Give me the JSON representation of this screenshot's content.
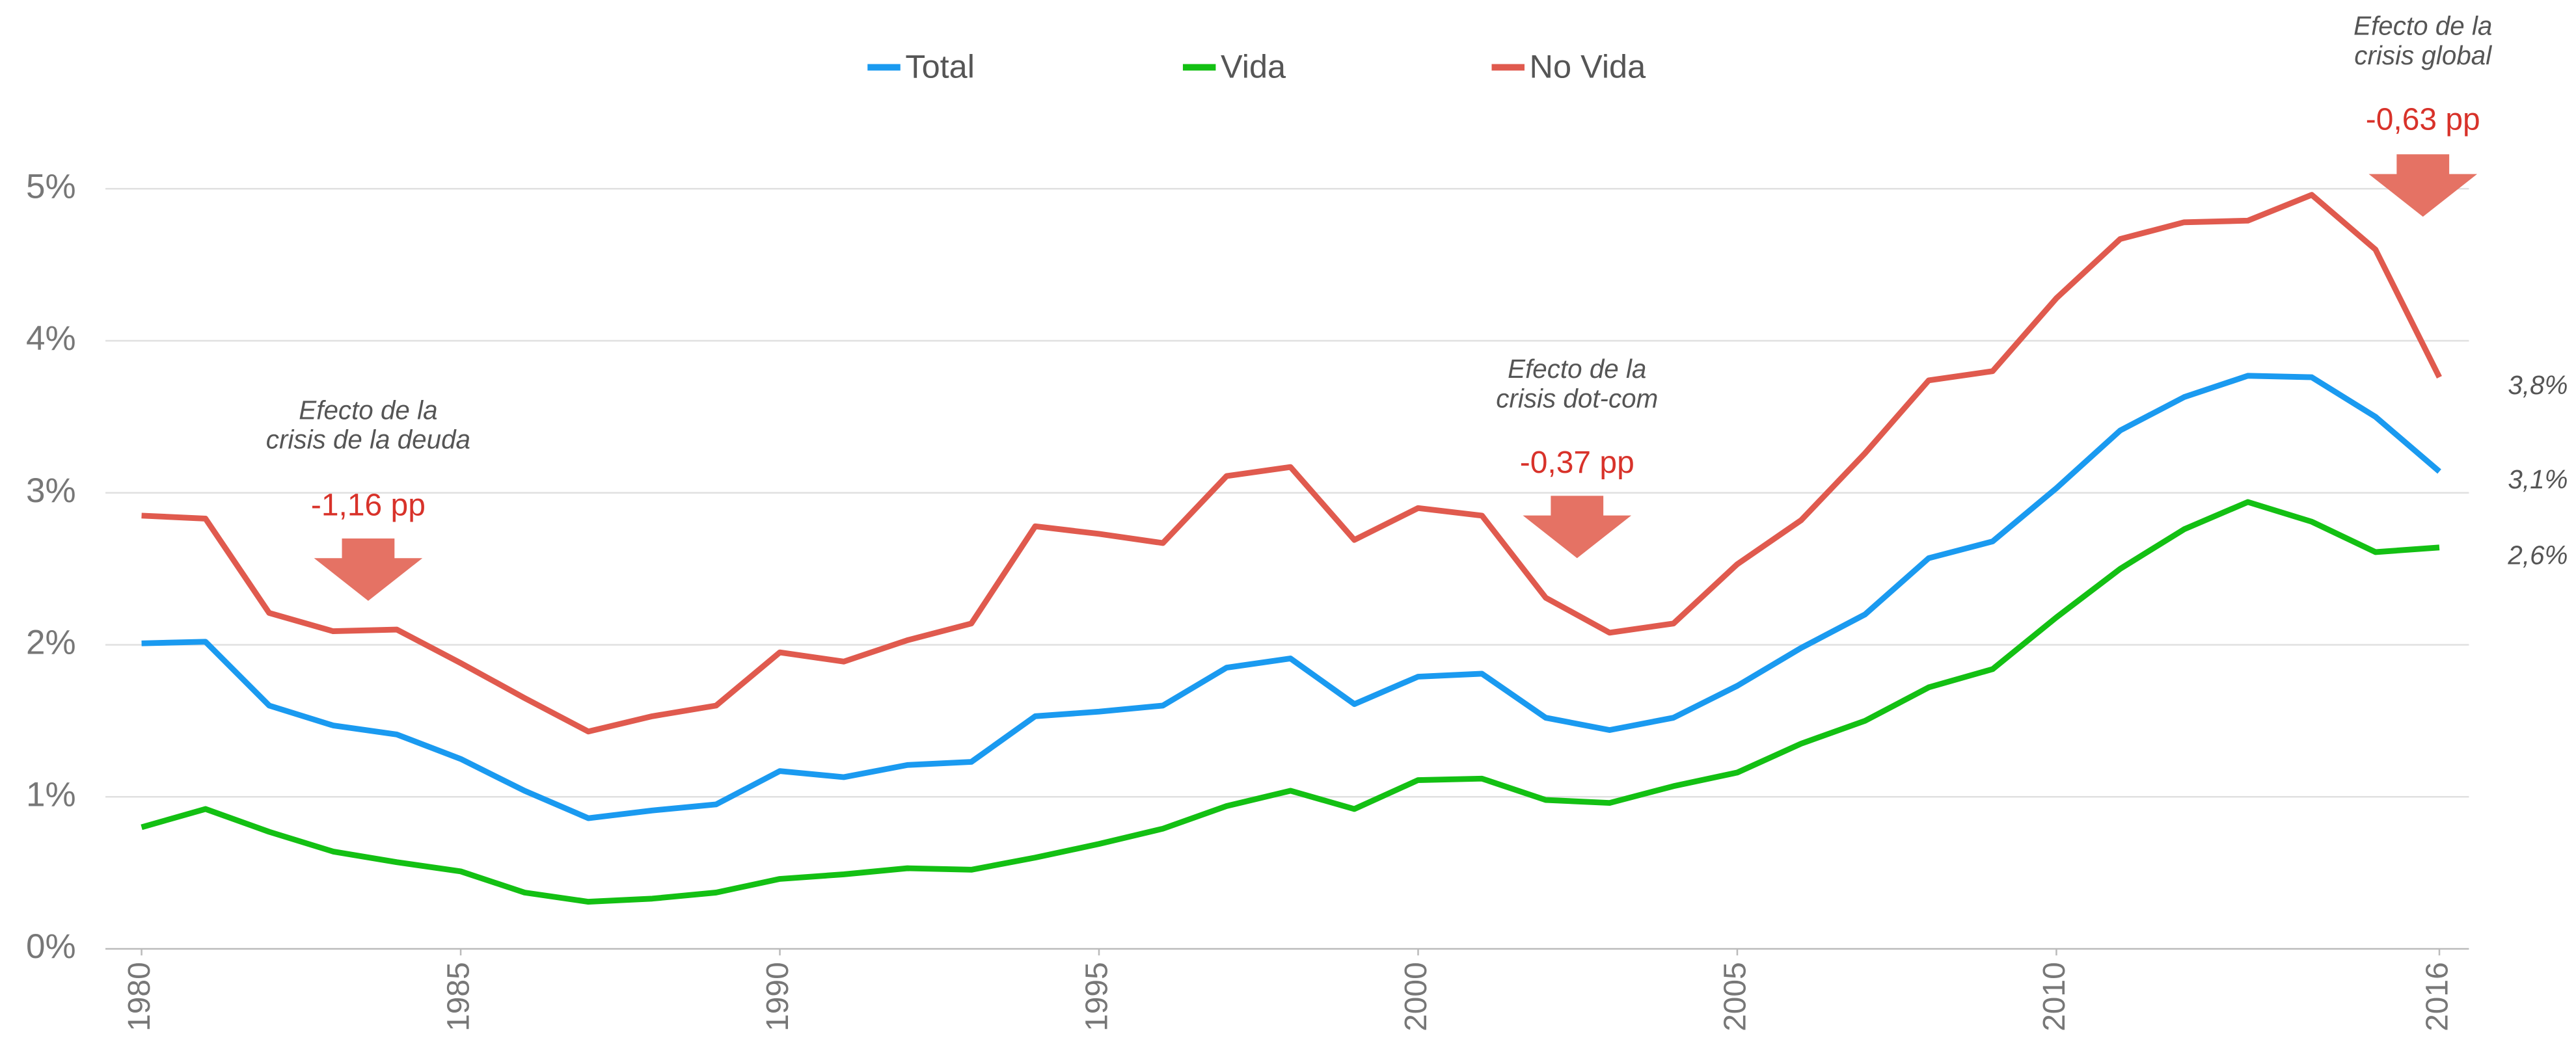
{
  "chart_data": {
    "type": "line",
    "x": [
      1980,
      1981,
      1982,
      1983,
      1984,
      1985,
      1986,
      1987,
      1988,
      1989,
      1990,
      1991,
      1992,
      1993,
      1994,
      1995,
      1996,
      1997,
      1998,
      1999,
      2000,
      2001,
      2002,
      2003,
      2004,
      2005,
      2006,
      2007,
      2008,
      2009,
      2010,
      2011,
      2012,
      2013,
      2014,
      2015,
      2016
    ],
    "xlim": [
      1980,
      2016
    ],
    "xticks": [
      1980,
      1985,
      1990,
      1995,
      2000,
      2005,
      2010,
      2016
    ],
    "ylim": [
      0,
      5
    ],
    "yticks": [
      {
        "value": 0,
        "label": "0%"
      },
      {
        "value": 1,
        "label": "1%"
      },
      {
        "value": 2,
        "label": "2%"
      },
      {
        "value": 3,
        "label": "3%"
      },
      {
        "value": 4,
        "label": "4%"
      },
      {
        "value": 5,
        "label": "5%"
      }
    ],
    "grid": true,
    "legend": "top",
    "series": [
      {
        "name": "Total",
        "color": "#1a9af0",
        "values": [
          2.01,
          2.02,
          1.6,
          1.47,
          1.41,
          1.25,
          1.04,
          0.86,
          0.91,
          0.95,
          1.17,
          1.13,
          1.21,
          1.23,
          1.53,
          1.56,
          1.6,
          1.85,
          1.91,
          1.61,
          1.79,
          1.81,
          1.52,
          1.44,
          1.52,
          1.73,
          1.98,
          2.2,
          2.57,
          2.68,
          3.03,
          3.41,
          3.63,
          3.77,
          3.76,
          3.5,
          3.14
        ],
        "value_labels": [
          null,
          null,
          null,
          null,
          null,
          null,
          null,
          null,
          null,
          null,
          null,
          null,
          null,
          null,
          null,
          null,
          null,
          null,
          null,
          null,
          null,
          null,
          null,
          null,
          null,
          null,
          null,
          null,
          null,
          null,
          null,
          null,
          null,
          null,
          null,
          null,
          "3,1%"
        ]
      },
      {
        "name": "Vida",
        "color": "#13c013",
        "values": [
          0.8,
          0.92,
          0.77,
          0.64,
          0.57,
          0.51,
          0.37,
          0.31,
          0.33,
          0.37,
          0.46,
          0.49,
          0.53,
          0.52,
          0.6,
          0.69,
          0.79,
          0.94,
          1.04,
          0.92,
          1.11,
          1.12,
          0.98,
          0.96,
          1.07,
          1.16,
          1.35,
          1.5,
          1.72,
          1.84,
          2.18,
          2.5,
          2.76,
          2.94,
          2.81,
          2.61,
          2.64
        ],
        "value_labels": [
          null,
          null,
          null,
          null,
          null,
          null,
          null,
          null,
          null,
          null,
          null,
          null,
          null,
          null,
          null,
          null,
          null,
          null,
          null,
          null,
          null,
          null,
          null,
          null,
          null,
          null,
          null,
          null,
          null,
          null,
          null,
          null,
          null,
          null,
          null,
          null,
          "2,6%"
        ]
      },
      {
        "name": "No Vida",
        "color": "#e05a4e",
        "values": [
          2.85,
          2.83,
          2.21,
          2.09,
          2.1,
          1.88,
          1.65,
          1.43,
          1.53,
          1.6,
          1.95,
          1.89,
          2.03,
          2.14,
          2.78,
          2.73,
          2.67,
          3.11,
          3.17,
          2.69,
          2.9,
          2.85,
          2.31,
          2.08,
          2.14,
          2.53,
          2.82,
          3.26,
          3.74,
          3.8,
          4.28,
          4.67,
          4.78,
          4.79,
          4.96,
          4.6,
          3.76
        ],
        "value_labels": [
          null,
          null,
          null,
          null,
          null,
          null,
          null,
          null,
          null,
          null,
          null,
          null,
          null,
          null,
          null,
          null,
          null,
          null,
          null,
          null,
          null,
          null,
          null,
          null,
          null,
          null,
          null,
          null,
          null,
          null,
          null,
          null,
          null,
          null,
          null,
          null,
          "3,8%"
        ]
      }
    ],
    "annotations": [
      {
        "text": [
          "Efecto de la",
          "crisis de la deuda"
        ],
        "delta": "-1,16 pp"
      },
      {
        "text": [
          "Efecto de la",
          "crisis dot-com"
        ],
        "delta": "-0,37 pp"
      },
      {
        "text": [
          "Efecto de la",
          "crisis global"
        ],
        "delta": "-0,63 pp"
      }
    ]
  }
}
